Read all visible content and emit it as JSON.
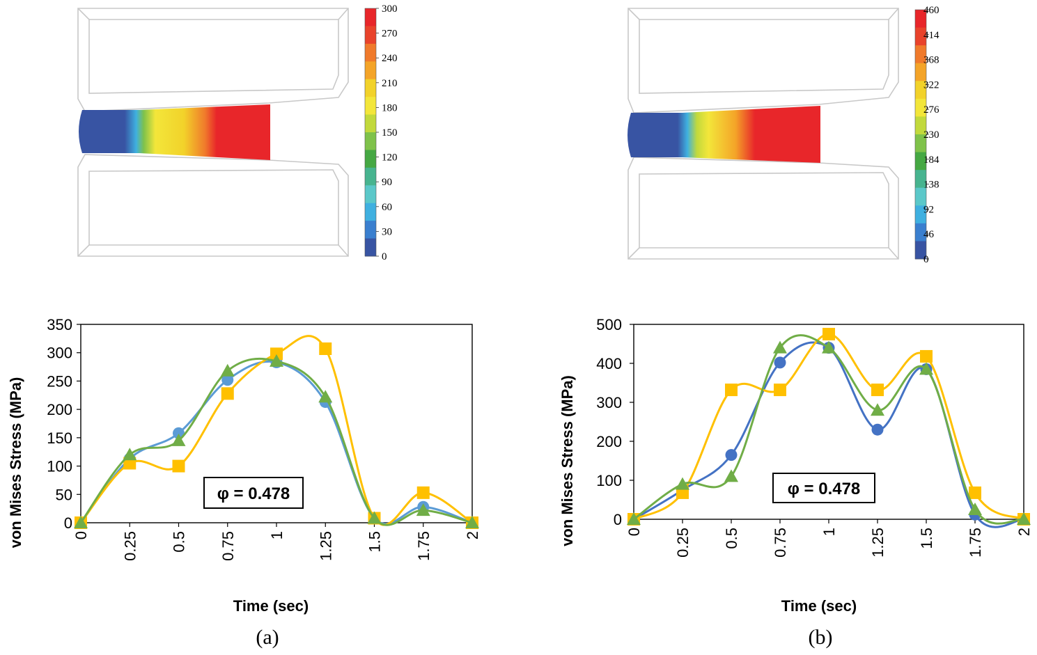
{
  "colors": {
    "blue": "#4472c4",
    "light_blue": "#5b9bd5",
    "orange": "#ffc000",
    "green": "#70ad47"
  },
  "contours": [
    {
      "name": "a",
      "legend_values": [
        "300",
        "270",
        "240",
        "210",
        "180",
        "150",
        "120",
        "90",
        "60",
        "30",
        "0"
      ],
      "legend_colors": [
        "#e8262a",
        "#e9432b",
        "#f07a2b",
        "#f4a428",
        "#f2d22a",
        "#f3e63a",
        "#c2d93c",
        "#7fc24a",
        "#45a843",
        "#47b48f",
        "#5bc8c9",
        "#3fb0e0",
        "#3a7fcf",
        "#3854a3"
      ]
    },
    {
      "name": "b",
      "legend_values": [
        "460",
        "414",
        "368",
        "322",
        "276",
        "230",
        "184",
        "138",
        "92",
        "46",
        "0"
      ],
      "legend_colors": [
        "#e8262a",
        "#e9432b",
        "#f07a2b",
        "#f4a428",
        "#f2d22a",
        "#f3e63a",
        "#c2d93c",
        "#7fc24a",
        "#45a843",
        "#47b48f",
        "#5bc8c9",
        "#3fb0e0",
        "#3a7fcf",
        "#3854a3"
      ]
    }
  ],
  "chart_data": [
    {
      "type": "line",
      "panel": "(a)",
      "xlabel": "Time (sec)",
      "ylabel": "von Mises Stress (MPa)",
      "ylim": [
        0,
        350
      ],
      "yticks": [
        "0",
        "50",
        "100",
        "150",
        "200",
        "250",
        "300",
        "350"
      ],
      "categories": [
        "0",
        "0.25",
        "0.5",
        "0.75",
        "1",
        "1.25",
        "1.5",
        "1.75",
        "2"
      ],
      "annotation": "φ = 0.478",
      "series": [
        {
          "name": "series-circle-light",
          "marker": "circle",
          "color": "#5b9bd5",
          "values": [
            0,
            113,
            158,
            252,
            283,
            213,
            8,
            28,
            0
          ]
        },
        {
          "name": "series-square",
          "marker": "square",
          "color": "#ffc000",
          "values": [
            0,
            105,
            100,
            228,
            298,
            307,
            8,
            53,
            0
          ]
        },
        {
          "name": "series-triangle",
          "marker": "triangle",
          "color": "#70ad47",
          "values": [
            0,
            120,
            145,
            268,
            285,
            222,
            8,
            22,
            0
          ]
        }
      ]
    },
    {
      "type": "line",
      "panel": "(b)",
      "xlabel": "Time (sec)",
      "ylabel": "von Mises Stress (MPa)",
      "ylim": [
        0,
        500
      ],
      "yticks": [
        "0",
        "100",
        "200",
        "300",
        "400",
        "500"
      ],
      "categories": [
        "0",
        "0.25",
        "0.5",
        "0.75",
        "1",
        "1.25",
        "1.5",
        "1.75",
        "2"
      ],
      "annotation": "φ = 0.478",
      "series": [
        {
          "name": "series-circle",
          "marker": "circle",
          "color": "#4472c4",
          "values": [
            0,
            75,
            165,
            402,
            440,
            230,
            385,
            12,
            0
          ]
        },
        {
          "name": "series-square",
          "marker": "square",
          "color": "#ffc000",
          "values": [
            0,
            68,
            332,
            332,
            475,
            332,
            418,
            68,
            0
          ]
        },
        {
          "name": "series-triangle",
          "marker": "triangle",
          "color": "#70ad47",
          "values": [
            0,
            90,
            110,
            440,
            440,
            280,
            385,
            25,
            0
          ]
        }
      ]
    }
  ],
  "captions": {
    "a": "(a)",
    "b": "(b)"
  }
}
